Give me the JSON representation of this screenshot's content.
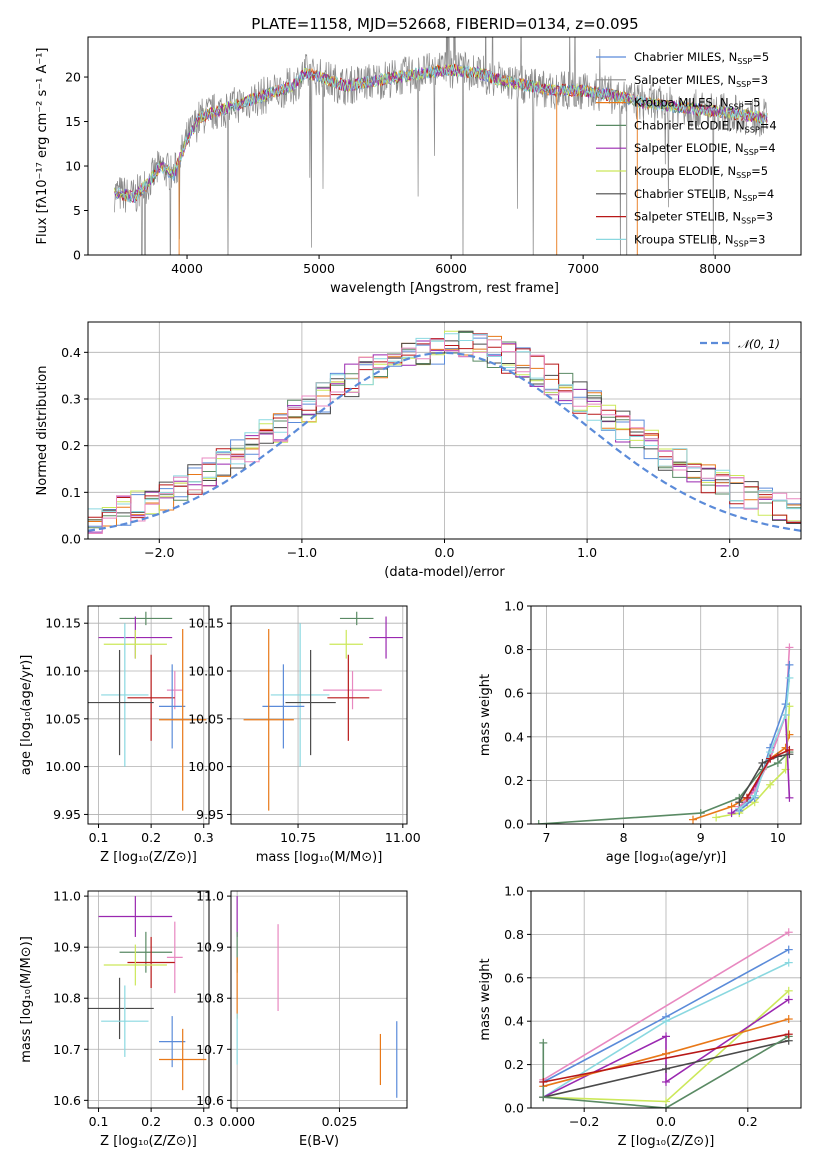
{
  "figure_title": "PLATE=1158, MJD=52668, FIBERID=0134, z=0.095",
  "colors": {
    "Chabrier MILES": "#5b8bd9",
    "Salpeter MILES": "#8a8a8a",
    "Kroupa MILES": "#e87818",
    "Chabrier ELODIE": "#5a8a64",
    "Salpeter ELODIE": "#9a28b0",
    "Kroupa ELODIE": "#cce85a",
    "Chabrier STELIB": "#4a4a4a",
    "Salpeter STELIB": "#b81818",
    "Kroupa STELIB": "#8ad8e0",
    "Normal": "#5b8bd9",
    "extra_pink": "#e888c0"
  },
  "chart_data": [
    {
      "id": "spectrum",
      "type": "line",
      "title": "PLATE=1158, MJD=52668, FIBERID=0134, z=0.095",
      "xlabel": "wavelength [Angstrom, rest frame]",
      "ylabel": "Flux [fλ10⁻¹⁷ erg cm⁻² s⁻¹ A⁻¹]",
      "xlim": [
        3250,
        8650
      ],
      "ylim": [
        0,
        24.5
      ],
      "xticks": [
        4000,
        5000,
        6000,
        7000,
        8000
      ],
      "yticks": [
        0,
        5,
        10,
        15,
        20
      ],
      "legend_position": "upper right",
      "legend": [
        {
          "name": "Chabrier MILES",
          "label": "Chabrier MILES, N",
          "sub": "SSP",
          "n": "=5"
        },
        {
          "name": "Salpeter MILES",
          "label": "Salpeter MILES, N",
          "sub": "SSP",
          "n": "=3"
        },
        {
          "name": "Kroupa MILES",
          "label": "Kroupa MILES, N",
          "sub": "SSP",
          "n": "=5"
        },
        {
          "name": "Chabrier ELODIE",
          "label": "Chabrier ELODIE, N",
          "sub": "SSP",
          "n": "=4"
        },
        {
          "name": "Salpeter ELODIE",
          "label": "Salpeter ELODIE, N",
          "sub": "SSP",
          "n": "=4"
        },
        {
          "name": "Kroupa ELODIE",
          "label": "Kroupa ELODIE, N",
          "sub": "SSP",
          "n": "=5"
        },
        {
          "name": "Chabrier STELIB",
          "label": "Chabrier STELIB, N",
          "sub": "SSP",
          "n": "=4"
        },
        {
          "name": "Salpeter STELIB",
          "label": "Salpeter STELIB, N",
          "sub": "SSP",
          "n": "=3"
        },
        {
          "name": "Kroupa STELIB",
          "label": "Kroupa STELIB, N",
          "sub": "SSP",
          "n": "=3"
        }
      ],
      "continuum": [
        [
          3450,
          7
        ],
        [
          3600,
          6.5
        ],
        [
          3700,
          8
        ],
        [
          3800,
          10
        ],
        [
          3900,
          9
        ],
        [
          4000,
          13
        ],
        [
          4100,
          15.5
        ],
        [
          4200,
          16
        ],
        [
          4300,
          16.5
        ],
        [
          4400,
          17
        ],
        [
          4600,
          18
        ],
        [
          4800,
          19
        ],
        [
          4900,
          20.5
        ],
        [
          5000,
          20
        ],
        [
          5200,
          19
        ],
        [
          5400,
          19.5
        ],
        [
          5600,
          20
        ],
        [
          5800,
          20.5
        ],
        [
          6000,
          20.8
        ],
        [
          6200,
          20.5
        ],
        [
          6400,
          19.5
        ],
        [
          6600,
          19
        ],
        [
          6800,
          18.5
        ],
        [
          7000,
          18.5
        ],
        [
          7200,
          18
        ],
        [
          7500,
          17
        ],
        [
          7800,
          16.5
        ],
        [
          8100,
          16
        ],
        [
          8400,
          15.3
        ]
      ]
    },
    {
      "id": "residuals",
      "type": "histogram",
      "xlabel": "(data-model)/error",
      "ylabel": "Normed distribution",
      "xlim": [
        -2.5,
        2.5
      ],
      "ylim": [
        0,
        0.465
      ],
      "xticks": [
        -2,
        -1,
        0,
        1,
        2
      ],
      "yticks": [
        0.0,
        0.1,
        0.2,
        0.3,
        0.4
      ],
      "legend": [
        {
          "name": "Normal",
          "label": "𝒩(0, 1)",
          "style": "dashed"
        }
      ],
      "legend_position": "upper right",
      "bin_width": 0.1,
      "normal_curve": {
        "mean": 0,
        "sigma": 1
      }
    },
    {
      "id": "age_vs_Z",
      "type": "errorbar",
      "xlabel": "Z [log₁₀(Z/Z⊙)]",
      "ylabel": "age  [log₁₀(age/yr)]",
      "xlim": [
        0.08,
        0.31
      ],
      "ylim": [
        9.94,
        10.168
      ],
      "xticks": [
        0.1,
        0.2,
        0.3
      ],
      "yticks": [
        9.95,
        10.0,
        10.05,
        10.1,
        10.15
      ],
      "points": [
        {
          "name": "Chabrier ELODIE",
          "x": 0.19,
          "y": 10.155,
          "xerr": 0.05,
          "yerr": 0.007
        },
        {
          "name": "Salpeter ELODIE",
          "x": 0.17,
          "y": 10.135,
          "xerr": 0.07,
          "yerr": 0.022
        },
        {
          "name": "Kroupa ELODIE",
          "x": 0.17,
          "y": 10.128,
          "xerr": 0.06,
          "yerr": 0.015
        },
        {
          "name": "extra_pink",
          "x": 0.245,
          "y": 10.08,
          "xerr": 0.015,
          "yerr": 0.02
        },
        {
          "name": "Kroupa STELIB",
          "x": 0.15,
          "y": 10.075,
          "xerr": 0.045,
          "yerr": 0.075
        },
        {
          "name": "Salpeter STELIB",
          "x": 0.2,
          "y": 10.072,
          "xerr": 0.045,
          "yerr": 0.045
        },
        {
          "name": "Chabrier STELIB",
          "x": 0.14,
          "y": 10.067,
          "xerr": 0.065,
          "yerr": 0.055
        },
        {
          "name": "Chabrier MILES",
          "x": 0.24,
          "y": 10.063,
          "xerr": 0.025,
          "yerr": 0.044
        },
        {
          "name": "Kroupa MILES",
          "x": 0.26,
          "y": 10.049,
          "xerr": 0.045,
          "yerr": 0.095
        }
      ]
    },
    {
      "id": "age_vs_mass",
      "type": "errorbar",
      "xlabel": "mass [log₁₀(M/M⊙)]",
      "ylabel": "",
      "xlim": [
        10.59,
        11.01
      ],
      "ylim": [
        9.94,
        10.168
      ],
      "xticks": [
        10.75,
        11.0
      ],
      "yticks": [
        9.95,
        10.0,
        10.05,
        10.1,
        10.15
      ],
      "points": [
        {
          "name": "Chabrier ELODIE",
          "x": 10.89,
          "y": 10.155,
          "xerr": 0.04,
          "yerr": 0.007
        },
        {
          "name": "Salpeter ELODIE",
          "x": 10.96,
          "y": 10.135,
          "xerr": 0.04,
          "yerr": 0.022
        },
        {
          "name": "Kroupa ELODIE",
          "x": 10.865,
          "y": 10.128,
          "xerr": 0.04,
          "yerr": 0.015
        },
        {
          "name": "extra_pink",
          "x": 10.88,
          "y": 10.08,
          "xerr": 0.07,
          "yerr": 0.02
        },
        {
          "name": "Kroupa STELIB",
          "x": 10.755,
          "y": 10.075,
          "xerr": 0.07,
          "yerr": 0.075
        },
        {
          "name": "Salpeter STELIB",
          "x": 10.87,
          "y": 10.072,
          "xerr": 0.05,
          "yerr": 0.045
        },
        {
          "name": "Chabrier STELIB",
          "x": 10.78,
          "y": 10.067,
          "xerr": 0.06,
          "yerr": 0.055
        },
        {
          "name": "Chabrier MILES",
          "x": 10.715,
          "y": 10.063,
          "xerr": 0.05,
          "yerr": 0.044
        },
        {
          "name": "Kroupa MILES",
          "x": 10.68,
          "y": 10.049,
          "xerr": 0.06,
          "yerr": 0.095
        }
      ]
    },
    {
      "id": "mass_weight_vs_age",
      "type": "line",
      "xlabel": "age  [log₁₀(age/yr)]",
      "ylabel": "mass weight",
      "xlim": [
        6.8,
        10.3
      ],
      "ylim": [
        0,
        1.0
      ],
      "xticks": [
        7,
        8,
        9,
        10
      ],
      "yticks": [
        0.0,
        0.2,
        0.4,
        0.6,
        0.8,
        1.0
      ],
      "series": [
        {
          "name": "Chabrier ELODIE",
          "x": [
            6.9,
            9.0,
            9.5,
            9.8,
            10.0,
            10.15
          ],
          "y": [
            0.0,
            0.05,
            0.12,
            0.25,
            0.28,
            0.33
          ]
        },
        {
          "name": "Kroupa MILES",
          "x": [
            8.9,
            9.4,
            9.6,
            9.9,
            10.1,
            10.15
          ],
          "y": [
            0.02,
            0.08,
            0.12,
            0.3,
            0.35,
            0.41
          ]
        },
        {
          "name": "Kroupa ELODIE",
          "x": [
            9.2,
            9.5,
            9.7,
            9.9,
            10.1,
            10.15
          ],
          "y": [
            0.03,
            0.05,
            0.1,
            0.18,
            0.25,
            0.54
          ]
        },
        {
          "name": "Salpeter ELODIE",
          "x": [
            9.4,
            9.6,
            9.9,
            10.1,
            10.15
          ],
          "y": [
            0.05,
            0.1,
            0.3,
            0.5,
            0.12
          ]
        },
        {
          "name": "extra_pink",
          "x": [
            9.5,
            9.7,
            9.9,
            10.1,
            10.15
          ],
          "y": [
            0.08,
            0.15,
            0.3,
            0.5,
            0.81
          ]
        },
        {
          "name": "Chabrier MILES",
          "x": [
            9.5,
            9.7,
            9.9,
            10.1,
            10.15
          ],
          "y": [
            0.06,
            0.12,
            0.35,
            0.55,
            0.73
          ]
        },
        {
          "name": "Kroupa STELIB",
          "x": [
            9.5,
            9.7,
            9.9,
            10.1,
            10.15
          ],
          "y": [
            0.07,
            0.13,
            0.33,
            0.5,
            0.67
          ]
        },
        {
          "name": "Chabrier STELIB",
          "x": [
            9.5,
            9.8,
            10.0,
            10.15
          ],
          "y": [
            0.1,
            0.28,
            0.31,
            0.32
          ]
        },
        {
          "name": "Salpeter STELIB",
          "x": [
            9.6,
            9.9,
            10.15
          ],
          "y": [
            0.12,
            0.3,
            0.34
          ]
        }
      ]
    },
    {
      "id": "mass_vs_Z",
      "type": "errorbar",
      "xlabel": "Z [log₁₀(Z/Z⊙)]",
      "ylabel": "mass [log₁₀(M/M⊙)]",
      "xlim": [
        0.08,
        0.31
      ],
      "ylim": [
        10.585,
        11.01
      ],
      "xticks": [
        0.1,
        0.2,
        0.3
      ],
      "yticks": [
        10.6,
        10.7,
        10.8,
        10.9,
        11.0
      ],
      "points": [
        {
          "name": "Salpeter ELODIE",
          "x": 0.17,
          "y": 10.96,
          "xerr": 0.07,
          "yerr": 0.04
        },
        {
          "name": "Chabrier ELODIE",
          "x": 0.19,
          "y": 10.89,
          "xerr": 0.05,
          "yerr": 0.04
        },
        {
          "name": "extra_pink",
          "x": 0.245,
          "y": 10.88,
          "xerr": 0.015,
          "yerr": 0.07
        },
        {
          "name": "Salpeter STELIB",
          "x": 0.2,
          "y": 10.87,
          "xerr": 0.045,
          "yerr": 0.05
        },
        {
          "name": "Kroupa ELODIE",
          "x": 0.17,
          "y": 10.865,
          "xerr": 0.06,
          "yerr": 0.04
        },
        {
          "name": "Chabrier STELIB",
          "x": 0.14,
          "y": 10.78,
          "xerr": 0.065,
          "yerr": 0.06
        },
        {
          "name": "Kroupa STELIB",
          "x": 0.15,
          "y": 10.755,
          "xerr": 0.045,
          "yerr": 0.07
        },
        {
          "name": "Chabrier MILES",
          "x": 0.24,
          "y": 10.715,
          "xerr": 0.025,
          "yerr": 0.05
        },
        {
          "name": "Kroupa MILES",
          "x": 0.26,
          "y": 10.68,
          "xerr": 0.045,
          "yerr": 0.06
        }
      ]
    },
    {
      "id": "mass_vs_ebv",
      "type": "errorbar",
      "xlabel": "E(B-V)",
      "ylabel": "",
      "xlim": [
        -0.0015,
        0.0415
      ],
      "ylim": [
        10.585,
        11.01
      ],
      "xticks": [
        0.0,
        0.025
      ],
      "yticks": [
        10.6,
        10.7,
        10.8,
        10.9,
        11.0
      ],
      "points": [
        {
          "name": "Salpeter ELODIE",
          "x": 0.0,
          "y": 10.96,
          "xerr": 0,
          "yerr": 0.04
        },
        {
          "name": "Chabrier ELODIE",
          "x": 0.0,
          "y": 10.89,
          "xerr": 0,
          "yerr": 0.04
        },
        {
          "name": "Kroupa MILES",
          "x": 0.0,
          "y": 10.82,
          "xerr": 0,
          "yerr": 0.06
        },
        {
          "name": "extra_pink",
          "x": 0.01,
          "y": 10.86,
          "xerr": 0,
          "yerr": 0.085
        },
        {
          "name": "Kroupa STELIB",
          "x": 0.0,
          "y": 10.72,
          "xerr": 0,
          "yerr": 0.05
        },
        {
          "name": "Kroupa MILES",
          "x": 0.035,
          "y": 10.68,
          "xerr": 0,
          "yerr": 0.05
        },
        {
          "name": "Chabrier MILES",
          "x": 0.039,
          "y": 10.68,
          "xerr": 0,
          "yerr": 0.075
        }
      ]
    },
    {
      "id": "mass_weight_vs_Z",
      "type": "line",
      "xlabel": "Z [log₁₀(Z/Z⊙)]",
      "ylabel": "mass weight",
      "xlim": [
        -0.33,
        0.33
      ],
      "ylim": [
        0,
        1.0
      ],
      "xticks": [
        -0.2,
        0.0,
        0.2
      ],
      "yticks": [
        0.0,
        0.2,
        0.4,
        0.6,
        0.8,
        1.0
      ],
      "series": [
        {
          "name": "extra_pink",
          "x": [
            -0.3,
            0.3
          ],
          "y": [
            0.13,
            0.81
          ]
        },
        {
          "name": "Chabrier MILES",
          "x": [
            -0.3,
            0.0,
            0.3
          ],
          "y": [
            0.12,
            0.42,
            0.73
          ]
        },
        {
          "name": "Kroupa STELIB",
          "x": [
            -0.3,
            0.0,
            0.3
          ],
          "y": [
            0.05,
            0.4,
            0.67
          ]
        },
        {
          "name": "Kroupa ELODIE",
          "x": [
            -0.3,
            0.0,
            0.3
          ],
          "y": [
            0.05,
            0.03,
            0.54
          ]
        },
        {
          "name": "Salpeter ELODIE",
          "x": [
            -0.3,
            0.0,
            0.0,
            0.3
          ],
          "y": [
            0.05,
            0.33,
            0.12,
            0.5
          ]
        },
        {
          "name": "Kroupa MILES",
          "x": [
            -0.3,
            0.0,
            0.3
          ],
          "y": [
            0.1,
            0.25,
            0.41
          ]
        },
        {
          "name": "Chabrier STELIB",
          "x": [
            -0.3,
            0.0,
            0.3
          ],
          "y": [
            0.05,
            0.18,
            0.31
          ]
        },
        {
          "name": "Chabrier ELODIE",
          "x": [
            -0.3,
            -0.3,
            0.0,
            0.3
          ],
          "y": [
            0.3,
            0.05,
            0.0,
            0.33
          ]
        },
        {
          "name": "Salpeter STELIB",
          "x": [
            -0.3,
            0.3
          ],
          "y": [
            0.12,
            0.34
          ]
        }
      ]
    }
  ]
}
